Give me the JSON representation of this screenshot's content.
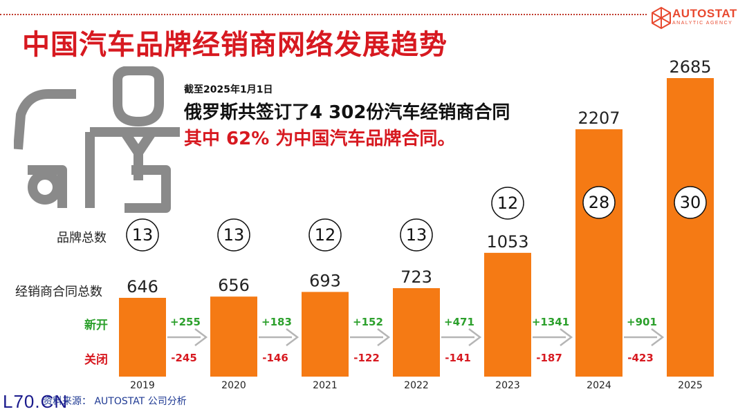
{
  "logo": {
    "name": "AUTOSTAT",
    "tagline": "ANALYTIC AGENCY"
  },
  "title": "中国汽车品牌经销商网络发展趋势",
  "note": {
    "date": "截至2025年1月1日",
    "headline": "俄罗斯共签订了4 302份汽车经销商合同",
    "sub": "其中 62% 为中国汽车品牌合同。"
  },
  "row_labels": {
    "brands": "品牌总数",
    "contracts": "经销商合同总数",
    "opened": "新开",
    "closed": "关闭"
  },
  "source": "资料来源： AUTOSTAT 公司分析",
  "watermark": "L70.CN",
  "colors": {
    "bar": "#f57a14",
    "title": "#d71920",
    "opened": "#2ca02c",
    "closed": "#d71920"
  },
  "chart_data": {
    "type": "bar",
    "categories": [
      "2019",
      "2020",
      "2021",
      "2022",
      "2023",
      "2024",
      "2025"
    ],
    "series": [
      {
        "name": "经销商合同总数",
        "values": [
          646,
          656,
          693,
          723,
          1053,
          2207,
          2685
        ]
      }
    ],
    "brand_counts": [
      13,
      13,
      12,
      13,
      12,
      28,
      30
    ],
    "opened": [
      "+255",
      "+183",
      "+152",
      "+471",
      "+1341",
      "+901"
    ],
    "closed": [
      "-245",
      "-146",
      "-122",
      "-141",
      "-187",
      "-423"
    ],
    "grid": false
  }
}
